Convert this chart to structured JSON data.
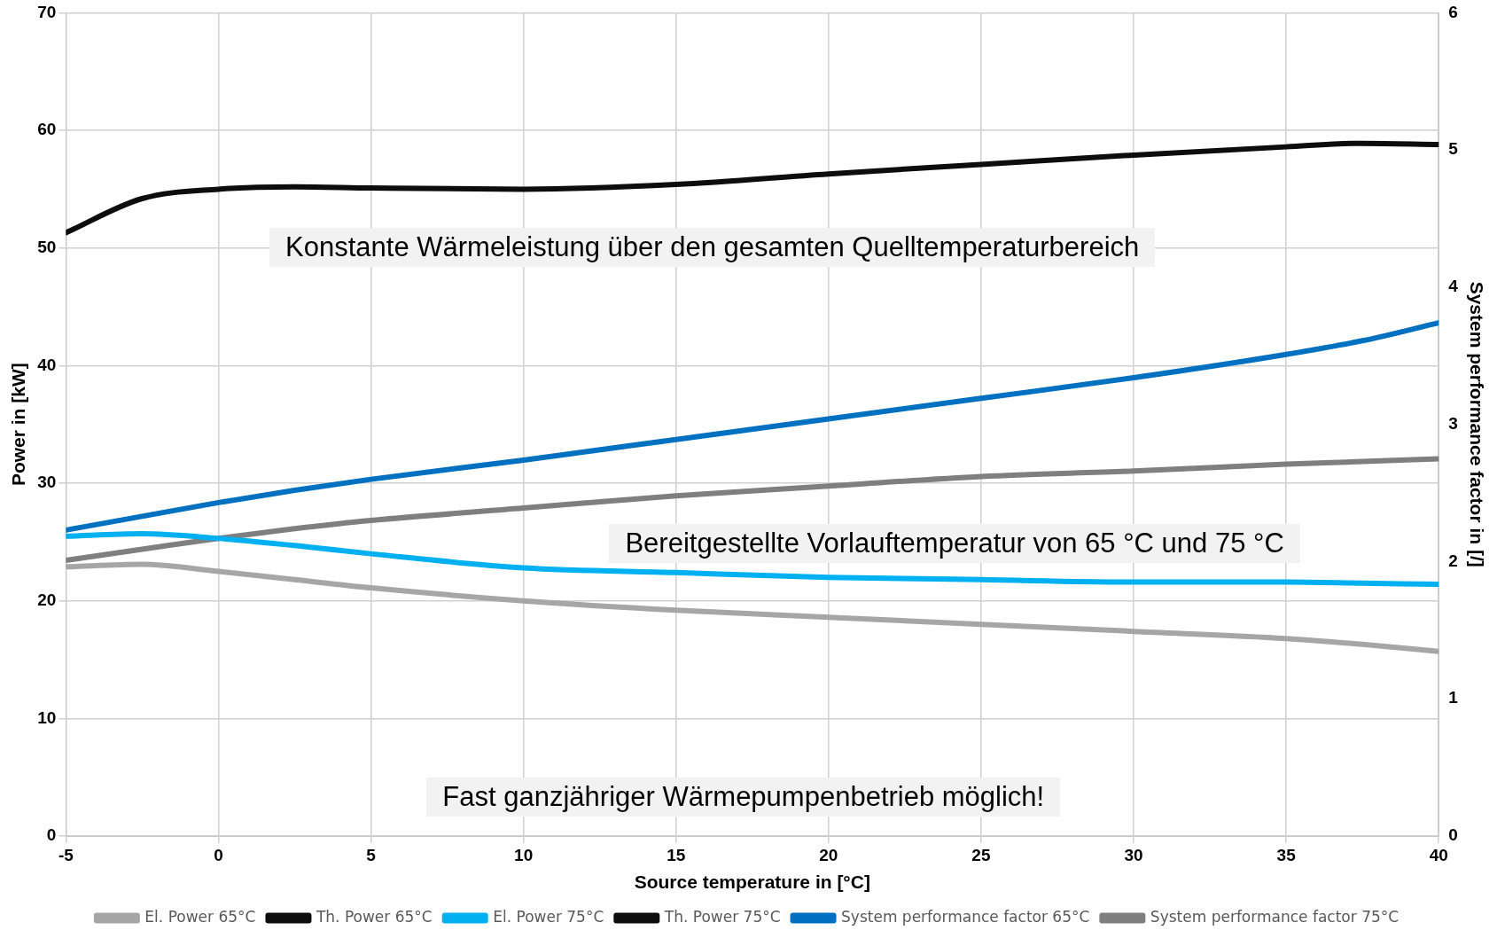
{
  "chart_data": {
    "type": "line",
    "xlabel": "Source temperature in [°C]",
    "ylabel": "Power in [kW]",
    "y2label": "System performance factor in [/]",
    "x": [
      -5,
      -2.5,
      0,
      2.5,
      5,
      10,
      15,
      20,
      25,
      30,
      35,
      37.5,
      40
    ],
    "xlim": [
      -5,
      40
    ],
    "xticks": [
      -5,
      0,
      5,
      10,
      15,
      20,
      25,
      30,
      35,
      40
    ],
    "ylim": [
      0,
      70
    ],
    "yticks": [
      0,
      10,
      20,
      30,
      40,
      50,
      60,
      70
    ],
    "y2lim": [
      0,
      6
    ],
    "y2ticks": [
      0,
      1,
      2,
      3,
      4,
      5,
      6
    ],
    "grid": true,
    "legend": "bottom",
    "marker": "none",
    "line_style": "solid",
    "series": [
      {
        "name": "El. Power 65°C",
        "color": "#a6a6a6",
        "values": [
          22.9,
          23.1,
          22.5,
          21.8,
          21.1,
          20.0,
          19.2,
          18.6,
          18.0,
          17.4,
          16.8,
          16.3,
          15.7
        ]
      },
      {
        "name": "Th. Power 65°C",
        "color": "#0d0d0d",
        "values": [
          51.3,
          54.2,
          55.0,
          55.2,
          55.1,
          55.0,
          55.4,
          56.3,
          57.1,
          57.9,
          58.6,
          58.9,
          58.8
        ]
      },
      {
        "name": "El. Power 75°C",
        "color": "#00b0f0",
        "values": [
          25.5,
          25.7,
          25.3,
          24.7,
          24.0,
          22.8,
          22.4,
          22.0,
          21.8,
          21.6,
          21.6,
          21.5,
          21.4
        ]
      },
      {
        "name": "Th. Power 75°C",
        "color": "#0d0d0d",
        "values": [
          null,
          null,
          null,
          null,
          null,
          null,
          null,
          null,
          null,
          null,
          null,
          null,
          null
        ]
      },
      {
        "name": "System performance factor 65°C",
        "color": "#0070c0",
        "axis": "y2",
        "values": [
          2.23,
          2.33,
          2.43,
          2.52,
          2.6,
          2.74,
          2.89,
          3.04,
          3.19,
          3.34,
          3.51,
          3.61,
          3.74
        ]
      },
      {
        "name": "System performance factor 75°C",
        "color": "#7f7f7f",
        "axis": "y2",
        "values": [
          2.01,
          2.09,
          2.17,
          2.24,
          2.3,
          2.39,
          2.48,
          2.55,
          2.62,
          2.66,
          2.71,
          2.73,
          2.75
        ]
      }
    ],
    "annotations": [
      "Konstante Wärmeleistung über den gesamten Quelltemperaturbereich",
      "Bereitgestellte Vorlauftemperatur von 65 °C und 75 °C",
      "Fast ganzjähriger Wärmepumpenbetrieb möglich!"
    ]
  }
}
